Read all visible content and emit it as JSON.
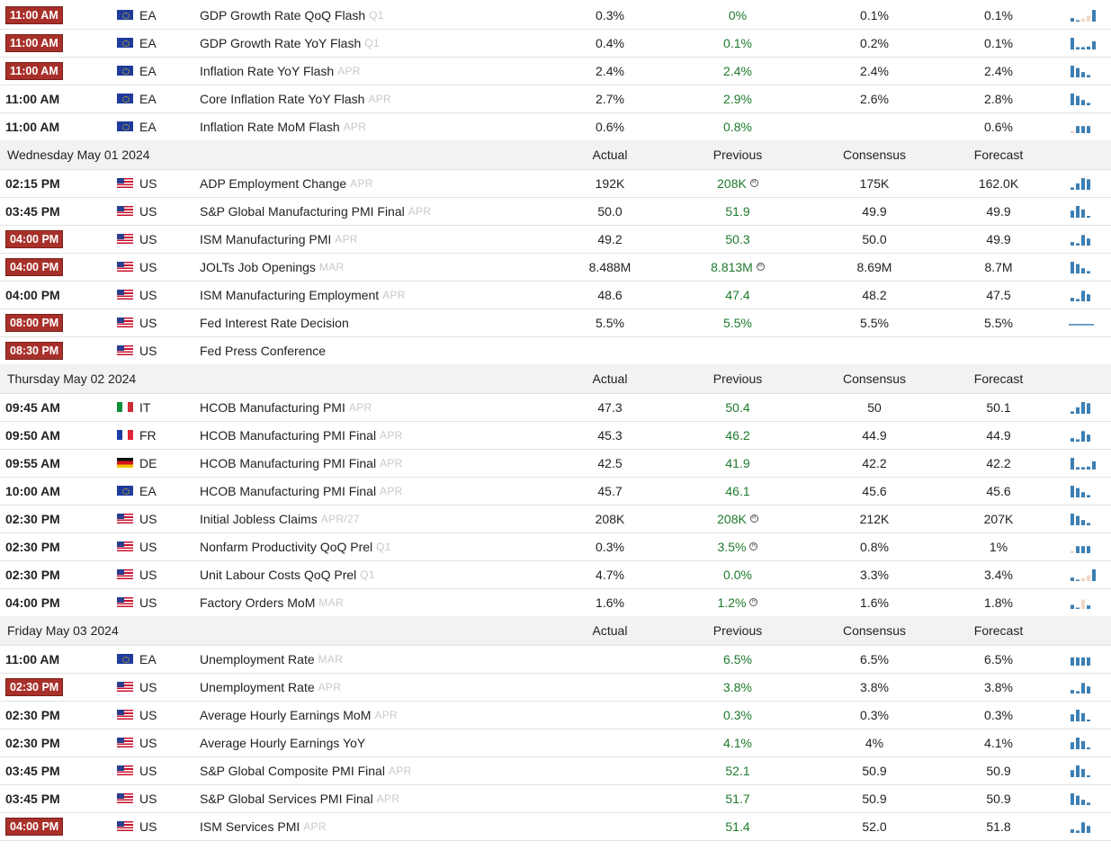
{
  "groups": [
    {
      "day": "",
      "rows": [
        {
          "time": "11:00 AM",
          "highlight": true,
          "country": "EA",
          "event": "GDP Growth Rate QoQ Flash",
          "period": "Q1",
          "actual": "0.3%",
          "previous": "0%",
          "consensus": "0.1%",
          "forecast": "0.1%",
          "spark": "mix1"
        },
        {
          "time": "11:00 AM",
          "highlight": true,
          "country": "EA",
          "event": "GDP Growth Rate YoY Flash",
          "period": "Q1",
          "actual": "0.4%",
          "previous": "0.1%",
          "consensus": "0.2%",
          "forecast": "0.1%",
          "spark": "mix2"
        },
        {
          "time": "11:00 AM",
          "highlight": true,
          "country": "EA",
          "event": "Inflation Rate YoY Flash",
          "period": "APR",
          "actual": "2.4%",
          "previous": "2.4%",
          "consensus": "2.4%",
          "forecast": "2.4%",
          "spark": "down"
        },
        {
          "time": "11:00 AM",
          "highlight": false,
          "country": "EA",
          "event": "Core Inflation Rate YoY Flash",
          "period": "APR",
          "actual": "2.7%",
          "previous": "2.9%",
          "consensus": "2.6%",
          "forecast": "2.8%",
          "spark": "down"
        },
        {
          "time": "11:00 AM",
          "highlight": false,
          "country": "EA",
          "event": "Inflation Rate MoM Flash",
          "period": "APR",
          "actual": "0.6%",
          "previous": "0.8%",
          "consensus": "",
          "forecast": "0.6%",
          "spark": "flat"
        }
      ]
    },
    {
      "day": "Wednesday May 01 2024",
      "headers": {
        "actual": "Actual",
        "previous": "Previous",
        "consensus": "Consensus",
        "forecast": "Forecast"
      },
      "rows": [
        {
          "time": "02:15 PM",
          "highlight": false,
          "country": "US",
          "event": "ADP Employment Change",
          "period": "APR",
          "actual": "192K",
          "previous": "208K",
          "rev": true,
          "consensus": "175K",
          "forecast": "162.0K",
          "spark": "up"
        },
        {
          "time": "03:45 PM",
          "highlight": false,
          "country": "US",
          "event": "S&P Global Manufacturing PMI Final",
          "period": "APR",
          "actual": "50.0",
          "previous": "51.9",
          "consensus": "49.9",
          "forecast": "49.9",
          "spark": "hump"
        },
        {
          "time": "04:00 PM",
          "highlight": true,
          "country": "US",
          "event": "ISM Manufacturing PMI",
          "period": "APR",
          "actual": "49.2",
          "previous": "50.3",
          "consensus": "50.0",
          "forecast": "49.9",
          "spark": "upv"
        },
        {
          "time": "04:00 PM",
          "highlight": true,
          "country": "US",
          "event": "JOLTs Job Openings",
          "period": "MAR",
          "actual": "8.488M",
          "previous": "8.813M",
          "rev": true,
          "consensus": "8.69M",
          "forecast": "8.7M",
          "spark": "down"
        },
        {
          "time": "04:00 PM",
          "highlight": false,
          "country": "US",
          "event": "ISM Manufacturing Employment",
          "period": "APR",
          "actual": "48.6",
          "previous": "47.4",
          "consensus": "48.2",
          "forecast": "47.5",
          "spark": "upv"
        },
        {
          "time": "08:00 PM",
          "highlight": true,
          "country": "US",
          "event": "Fed Interest Rate Decision",
          "period": "",
          "actual": "5.5%",
          "previous": "5.5%",
          "consensus": "5.5%",
          "forecast": "5.5%",
          "spark": "line"
        },
        {
          "time": "08:30 PM",
          "highlight": true,
          "country": "US",
          "event": "Fed Press Conference",
          "period": "",
          "actual": "",
          "previous": "",
          "consensus": "",
          "forecast": "",
          "spark": ""
        }
      ]
    },
    {
      "day": "Thursday May 02 2024",
      "headers": {
        "actual": "Actual",
        "previous": "Previous",
        "consensus": "Consensus",
        "forecast": "Forecast"
      },
      "rows": [
        {
          "time": "09:45 AM",
          "highlight": false,
          "country": "IT",
          "event": "HCOB Manufacturing PMI",
          "period": "APR",
          "actual": "47.3",
          "previous": "50.4",
          "consensus": "50",
          "forecast": "50.1",
          "spark": "up"
        },
        {
          "time": "09:50 AM",
          "highlight": false,
          "country": "FR",
          "event": "HCOB Manufacturing PMI Final",
          "period": "APR",
          "actual": "45.3",
          "previous": "46.2",
          "consensus": "44.9",
          "forecast": "44.9",
          "spark": "upv"
        },
        {
          "time": "09:55 AM",
          "highlight": false,
          "country": "DE",
          "event": "HCOB Manufacturing PMI Final",
          "period": "APR",
          "actual": "42.5",
          "previous": "41.9",
          "consensus": "42.2",
          "forecast": "42.2",
          "spark": "mix2"
        },
        {
          "time": "10:00 AM",
          "highlight": false,
          "country": "EA",
          "event": "HCOB Manufacturing PMI Final",
          "period": "APR",
          "actual": "45.7",
          "previous": "46.1",
          "consensus": "45.6",
          "forecast": "45.6",
          "spark": "down"
        },
        {
          "time": "02:30 PM",
          "highlight": false,
          "country": "US",
          "event": "Initial Jobless Claims",
          "period": "APR/27",
          "actual": "208K",
          "previous": "208K",
          "rev": true,
          "consensus": "212K",
          "forecast": "207K",
          "spark": "down"
        },
        {
          "time": "02:30 PM",
          "highlight": false,
          "country": "US",
          "event": "Nonfarm Productivity QoQ Prel",
          "period": "Q1",
          "actual": "0.3%",
          "previous": "3.5%",
          "rev": true,
          "consensus": "0.8%",
          "forecast": "1%",
          "spark": "flat"
        },
        {
          "time": "02:30 PM",
          "highlight": false,
          "country": "US",
          "event": "Unit Labour Costs QoQ Prel",
          "period": "Q1",
          "actual": "4.7%",
          "previous": "0.0%",
          "consensus": "3.3%",
          "forecast": "3.4%",
          "spark": "mix1"
        },
        {
          "time": "04:00 PM",
          "highlight": false,
          "country": "US",
          "event": "Factory Orders MoM",
          "period": "MAR",
          "actual": "1.6%",
          "previous": "1.2%",
          "rev": true,
          "consensus": "1.6%",
          "forecast": "1.8%",
          "spark": "neg"
        }
      ]
    },
    {
      "day": "Friday May 03 2024",
      "headers": {
        "actual": "Actual",
        "previous": "Previous",
        "consensus": "Consensus",
        "forecast": "Forecast"
      },
      "rows": [
        {
          "time": "11:00 AM",
          "highlight": false,
          "country": "EA",
          "event": "Unemployment Rate",
          "period": "MAR",
          "actual": "",
          "previous": "6.5%",
          "consensus": "6.5%",
          "forecast": "6.5%",
          "spark": "even"
        },
        {
          "time": "02:30 PM",
          "highlight": true,
          "country": "US",
          "event": "Unemployment Rate",
          "period": "APR",
          "actual": "",
          "previous": "3.8%",
          "consensus": "3.8%",
          "forecast": "3.8%",
          "spark": "upv"
        },
        {
          "time": "02:30 PM",
          "highlight": false,
          "country": "US",
          "event": "Average Hourly Earnings MoM",
          "period": "APR",
          "actual": "",
          "previous": "0.3%",
          "consensus": "0.3%",
          "forecast": "0.3%",
          "spark": "hump"
        },
        {
          "time": "02:30 PM",
          "highlight": false,
          "country": "US",
          "event": "Average Hourly Earnings YoY",
          "period": "",
          "actual": "",
          "previous": "4.1%",
          "consensus": "4%",
          "forecast": "4.1%",
          "spark": "hump"
        },
        {
          "time": "03:45 PM",
          "highlight": false,
          "country": "US",
          "event": "S&P Global Composite PMI Final",
          "period": "APR",
          "actual": "",
          "previous": "52.1",
          "consensus": "50.9",
          "forecast": "50.9",
          "spark": "hump"
        },
        {
          "time": "03:45 PM",
          "highlight": false,
          "country": "US",
          "event": "S&P Global Services PMI Final",
          "period": "APR",
          "actual": "",
          "previous": "51.7",
          "consensus": "50.9",
          "forecast": "50.9",
          "spark": "down"
        },
        {
          "time": "04:00 PM",
          "highlight": true,
          "country": "US",
          "event": "ISM Services PMI",
          "period": "APR",
          "actual": "",
          "previous": "51.4",
          "consensus": "52.0",
          "forecast": "51.8",
          "spark": "upv"
        }
      ]
    }
  ],
  "colors": {
    "highlight": "#a8302a",
    "previous": "#1e7a2c",
    "bar": "#3c7fb4",
    "barLight": "#f3d7c4"
  }
}
